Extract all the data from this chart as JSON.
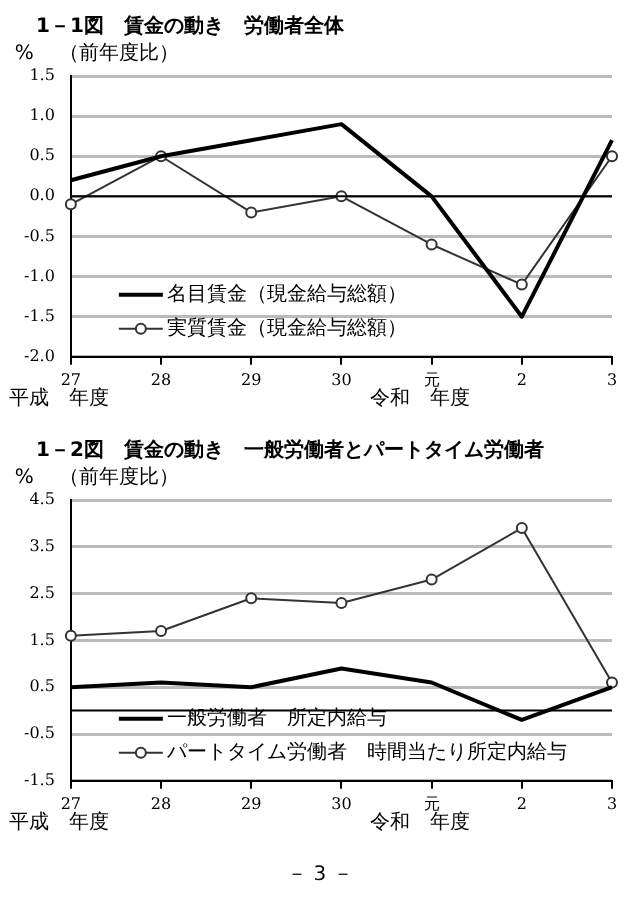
{
  "chart_data": [
    {
      "type": "line",
      "title": "1－1図　賃金の動き　労働者全体",
      "subtitle": "（前年度比）",
      "ylabel": "%",
      "categories": [
        "27",
        "28",
        "29",
        "30",
        "元",
        "2",
        "3"
      ],
      "series": [
        {
          "name": "名目賃金（現金給与総額）",
          "color": "#000000",
          "marker": "none",
          "values": [
            0.2,
            0.5,
            0.7,
            0.9,
            0.0,
            -1.5,
            0.7
          ]
        },
        {
          "name": "実質賃金（現金給与総額）",
          "color": "#333333",
          "marker": "circle",
          "values": [
            -0.1,
            0.5,
            -0.2,
            0.0,
            -0.6,
            -1.1,
            0.5
          ]
        }
      ],
      "ylim": [
        -2.0,
        1.5
      ],
      "yticks": [
        {
          "value": -2.0,
          "label": "-2.0"
        },
        -1.5,
        {
          "value": -1.0,
          "label": "-1.0"
        },
        -0.5,
        {
          "value": 0,
          "label": "0.0"
        },
        0.5,
        {
          "value": 1.0,
          "label": "1.0"
        },
        1.5
      ],
      "grid": "y",
      "legend": "bottom left",
      "ref_lines": [
        {
          "axis": "y",
          "value": 0,
          "label": null
        }
      ],
      "annotations": [
        "平成　年度",
        "令和　年度"
      ]
    },
    {
      "type": "line",
      "title": "1－2図　賃金の動き　一般労働者とパートタイム労働者",
      "subtitle": "（前年度比）",
      "ylabel": "%",
      "categories": [
        "27",
        "28",
        "29",
        "30",
        "元",
        "2",
        "3"
      ],
      "series": [
        {
          "name": "一般労働者　所定内給与",
          "color": "#000000",
          "marker": "none",
          "values": [
            0.5,
            0.6,
            0.5,
            0.9,
            0.6,
            -0.2,
            0.5
          ]
        },
        {
          "name": "パートタイム労働者　時間当たり所定内給与",
          "color": "#333333",
          "marker": "circle",
          "values": [
            1.6,
            1.7,
            2.4,
            2.3,
            2.8,
            3.9,
            0.6
          ]
        }
      ],
      "ylim": [
        -1.5,
        4.5
      ],
      "yticks": [
        -1.5,
        -0.5,
        0.5,
        1.5,
        2.5,
        3.5,
        4.5
      ],
      "grid": "y",
      "legend": "bottom left",
      "ref_lines": [
        {
          "axis": "y",
          "value": 0,
          "label": null
        }
      ],
      "annotations": [
        "平成　年度",
        "令和　年度",
        "－ 3 －"
      ]
    }
  ]
}
